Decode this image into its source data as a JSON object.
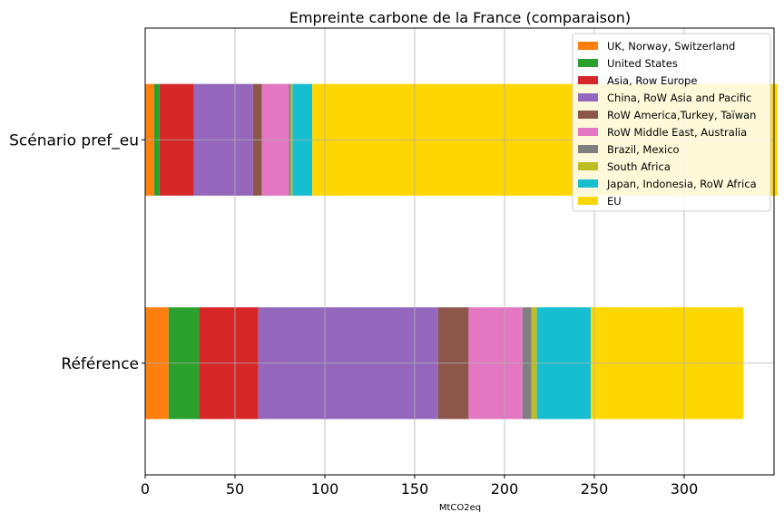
{
  "chart_data": {
    "type": "bar",
    "orientation": "horizontal",
    "stacked": true,
    "title": "Empreinte carbone de la France (comparaison)",
    "xlabel": "MtCO2eq",
    "ylabel": "",
    "xlim": [
      0,
      350
    ],
    "xticks": [
      0,
      50,
      100,
      150,
      200,
      250,
      300
    ],
    "grid": true,
    "legend_position": "top-right",
    "categories": [
      "Référence",
      "Scénario pref_eu"
    ],
    "series": [
      {
        "name": "UK, Norway, Switzerland",
        "color": "#ff7f0e",
        "values": [
          13,
          5
        ]
      },
      {
        "name": "United States",
        "color": "#2ca02c",
        "values": [
          17,
          3
        ]
      },
      {
        "name": "Asia, Row Europe",
        "color": "#d62728",
        "values": [
          33,
          19
        ]
      },
      {
        "name": "China, RoW Asia and Pacific",
        "color": "#9467bd",
        "values": [
          100,
          33
        ]
      },
      {
        "name": "RoW America,Turkey, Taïwan",
        "color": "#8c564b",
        "values": [
          17,
          5
        ]
      },
      {
        "name": "RoW Middle East, Australia",
        "color": "#e377c2",
        "values": [
          30,
          15
        ]
      },
      {
        "name": "Brazil, Mexico",
        "color": "#7f7f7f",
        "values": [
          5,
          1
        ]
      },
      {
        "name": "South Africa",
        "color": "#bcbd22",
        "values": [
          3,
          1
        ]
      },
      {
        "name": "Japan, Indonesia, RoW Africa",
        "color": "#17becf",
        "values": [
          30,
          11
        ]
      },
      {
        "name": "EU",
        "color": "#ffd700",
        "values": [
          85,
          259
        ]
      }
    ]
  }
}
